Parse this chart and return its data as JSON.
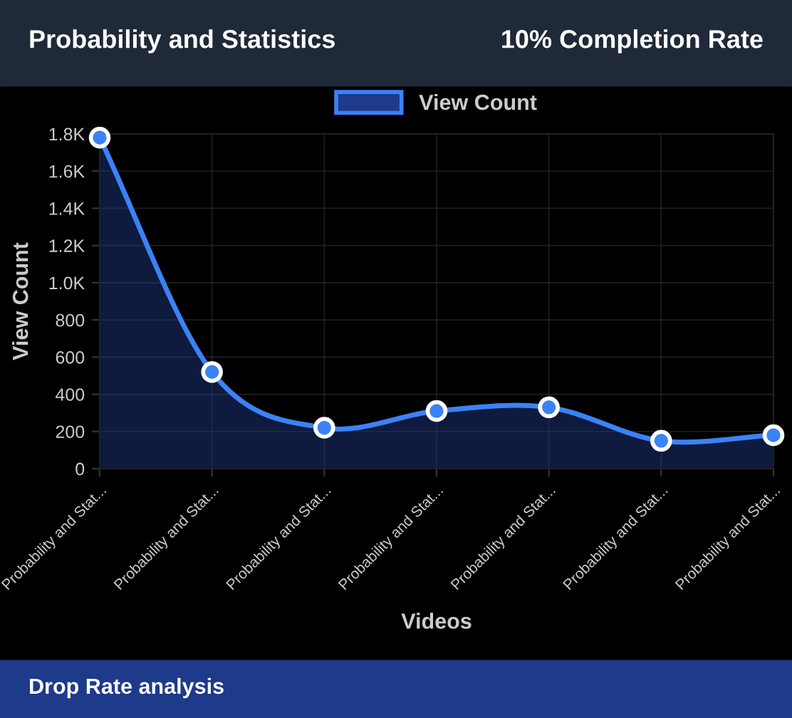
{
  "chart_data": {
    "type": "area",
    "title": "Probability and Statistics",
    "subtitle": "10% Completion Rate",
    "xlabel": "Videos",
    "ylabel": "View Count",
    "annotations": [
      "Drop Rate analysis"
    ],
    "categories": [
      "Probability and Stat...",
      "Probability and Stat...",
      "Probability and Stat...",
      "Probability and Stat...",
      "Probability and Stat...",
      "Probability and Stat...",
      "Probability and Stat..."
    ],
    "series": [
      {
        "name": "View Count",
        "color": "#3b82f6",
        "values": [
          1780,
          520,
          220,
          310,
          330,
          150,
          180
        ]
      }
    ],
    "ylim": [
      0,
      1800
    ],
    "yticks": [
      0,
      200,
      400,
      600,
      800,
      {
        "value": 1000,
        "label": "1.0K"
      },
      {
        "value": 1200,
        "label": "1.2K"
      },
      {
        "value": 1400,
        "label": "1.4K"
      },
      {
        "value": 1600,
        "label": "1.6K"
      },
      {
        "value": 1800,
        "label": "1.8K"
      }
    ],
    "grid": true,
    "legend": "top",
    "marker": "circle",
    "line_style": "solid"
  }
}
